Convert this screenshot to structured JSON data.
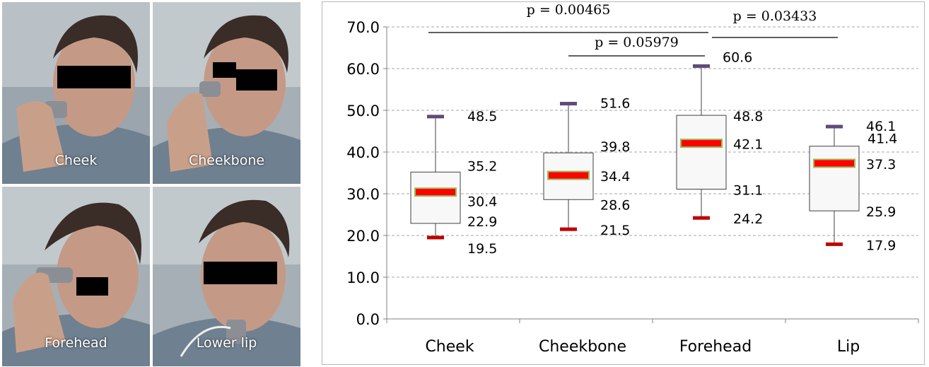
{
  "photos": [
    {
      "label": "Cheek",
      "icon": "face-photo-cheek"
    },
    {
      "label": "Cheekbone",
      "icon": "face-photo-cheekbone"
    },
    {
      "label": "Forehead",
      "icon": "face-photo-forehead"
    },
    {
      "label": "Lower lip",
      "icon": "face-photo-lower-lip"
    }
  ],
  "colors": {
    "median_fill": "#ff0000",
    "median_border": "#9bbb59",
    "max_marker": "#60497a",
    "min_marker": "#c00000",
    "grid": "#a6a6a6",
    "box_fill": "#f8f8f8",
    "box_stroke": "#404040"
  },
  "chart_data": {
    "type": "box",
    "title": "",
    "xlabel": "",
    "ylabel": "",
    "ylim": [
      0,
      70
    ],
    "yticks": [
      "0.0",
      "10.0",
      "20.0",
      "30.0",
      "40.0",
      "50.0",
      "60.0",
      "70.0"
    ],
    "grid": true,
    "categories": [
      "Cheek",
      "Cheekbone",
      "Forehead",
      "Lip"
    ],
    "series": [
      {
        "category": "Cheek",
        "min": 19.5,
        "q1": 22.9,
        "median": 30.4,
        "q3": 35.2,
        "max": 48.5
      },
      {
        "category": "Cheekbone",
        "min": 21.5,
        "q1": 28.6,
        "median": 34.4,
        "q3": 39.8,
        "max": 51.6
      },
      {
        "category": "Forehead",
        "min": 24.2,
        "q1": 31.1,
        "median": 42.1,
        "q3": 48.8,
        "max": 60.6
      },
      {
        "category": "Lip",
        "min": 17.9,
        "q1": 25.9,
        "median": 37.3,
        "q3": 41.4,
        "max": 46.1
      }
    ],
    "value_labels": [
      [
        "48.5",
        "35.2",
        "30.4",
        "22.9",
        "19.5"
      ],
      [
        "51.6",
        "39.8",
        "34.4",
        "28.6",
        "21.5"
      ],
      [
        "60.6",
        "48.8",
        "42.1",
        "31.1",
        "24.2"
      ],
      [
        "46.1",
        "41.4",
        "37.3",
        "25.9",
        "17.9"
      ]
    ],
    "annotations": [
      {
        "text": "p = 0.00465",
        "from": "Cheek",
        "to": "Forehead"
      },
      {
        "text": "p = 0.05979",
        "from": "Cheekbone",
        "to": "Forehead"
      },
      {
        "text": "p = 0.03433",
        "from": "Forehead",
        "to": "Lip"
      }
    ]
  }
}
